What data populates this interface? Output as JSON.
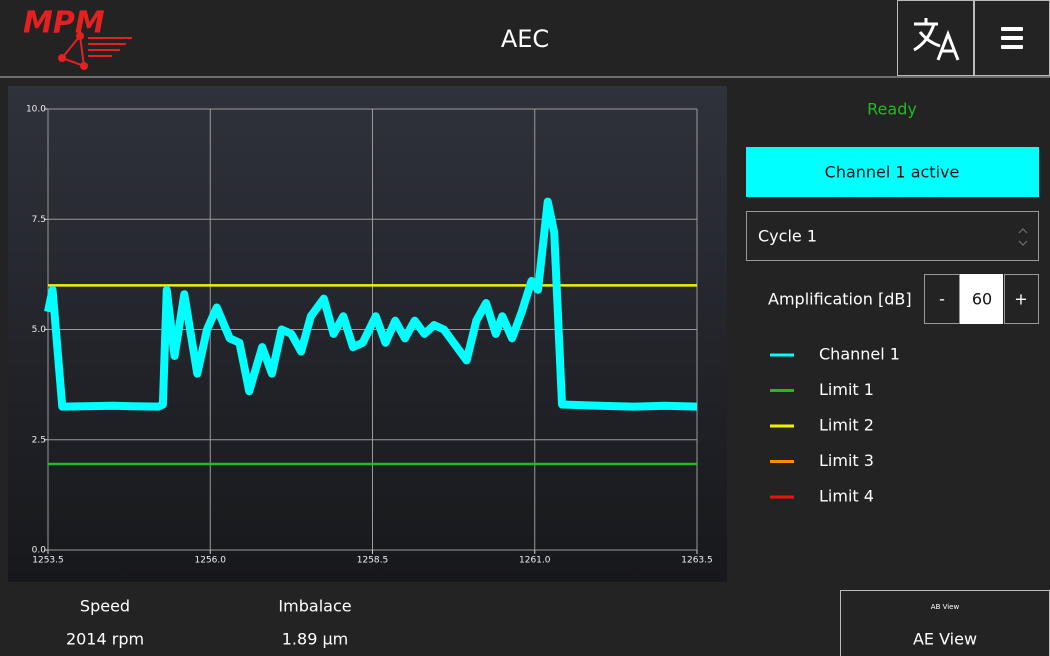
{
  "header": {
    "logo": "MPM",
    "title": "AEC"
  },
  "status": "Ready",
  "channel_button": "Channel 1 active",
  "cycle_select": "Cycle 1",
  "amplification": {
    "label": "Amplification [dB]",
    "minus": "-",
    "value": 60,
    "plus": "+"
  },
  "readouts": [
    {
      "label": "Speed",
      "value": "2014 rpm"
    },
    {
      "label": "Imbalace",
      "value": "1.89 µm"
    }
  ],
  "view_button": {
    "small": "AB View",
    "label": "AE View"
  },
  "chart_data": {
    "type": "line",
    "xlim": [
      1253.5,
      1263.5
    ],
    "xticks": [
      1253.5,
      {
        "value": 1256,
        "label": "1256.0"
      },
      1258.5,
      {
        "value": 1261,
        "label": "1261.0"
      },
      1263.5
    ],
    "ylim": [
      0,
      10
    ],
    "yticks": [
      {
        "value": 0,
        "label": "0.0"
      },
      2.5,
      {
        "value": 5,
        "label": "5.0"
      },
      7.5,
      {
        "value": 10,
        "label": "10.0"
      }
    ],
    "grid": true,
    "series": [
      {
        "name": "Channel 1",
        "color": "#00ffff",
        "x": [
          1253.5,
          1253.57,
          1253.72,
          1254.5,
          1255.2,
          1255.27,
          1255.33,
          1255.45,
          1255.6,
          1255.8,
          1255.95,
          1256.1,
          1256.3,
          1256.45,
          1256.6,
          1256.8,
          1256.95,
          1257.1,
          1257.25,
          1257.4,
          1257.55,
          1257.75,
          1257.9,
          1258.05,
          1258.2,
          1258.35,
          1258.55,
          1258.7,
          1258.85,
          1259.0,
          1259.15,
          1259.3,
          1259.45,
          1259.6,
          1259.8,
          1259.95,
          1260.1,
          1260.25,
          1260.4,
          1260.5,
          1260.65,
          1260.8,
          1260.95,
          1261.05,
          1261.2,
          1261.3,
          1261.42,
          1262.0,
          1262.5,
          1263.0,
          1263.5
        ],
        "values": [
          5.4,
          5.9,
          3.25,
          3.27,
          3.25,
          3.3,
          5.9,
          4.4,
          5.8,
          4.0,
          5.0,
          5.5,
          4.8,
          4.7,
          3.6,
          4.6,
          4.0,
          5.0,
          4.9,
          4.5,
          5.3,
          5.7,
          4.9,
          5.3,
          4.6,
          4.7,
          5.3,
          4.7,
          5.2,
          4.8,
          5.2,
          4.9,
          5.1,
          5.0,
          4.6,
          4.3,
          5.2,
          5.6,
          4.9,
          5.3,
          4.8,
          5.4,
          6.1,
          5.9,
          7.9,
          7.2,
          3.3,
          3.27,
          3.25,
          3.27,
          3.25
        ]
      },
      {
        "name": "Limit 1",
        "color": "#22b922",
        "x": [
          1253.5,
          1263.5
        ],
        "values": [
          1.95,
          1.95
        ]
      },
      {
        "name": "Limit 2",
        "color": "#f0f000",
        "x": [
          1253.5,
          1263.5
        ],
        "values": [
          6.0,
          6.0
        ]
      },
      {
        "name": "Limit 3",
        "color": "#ff8c00",
        "x": [],
        "values": []
      },
      {
        "name": "Limit 4",
        "color": "#ee1111",
        "x": [],
        "values": []
      }
    ]
  }
}
